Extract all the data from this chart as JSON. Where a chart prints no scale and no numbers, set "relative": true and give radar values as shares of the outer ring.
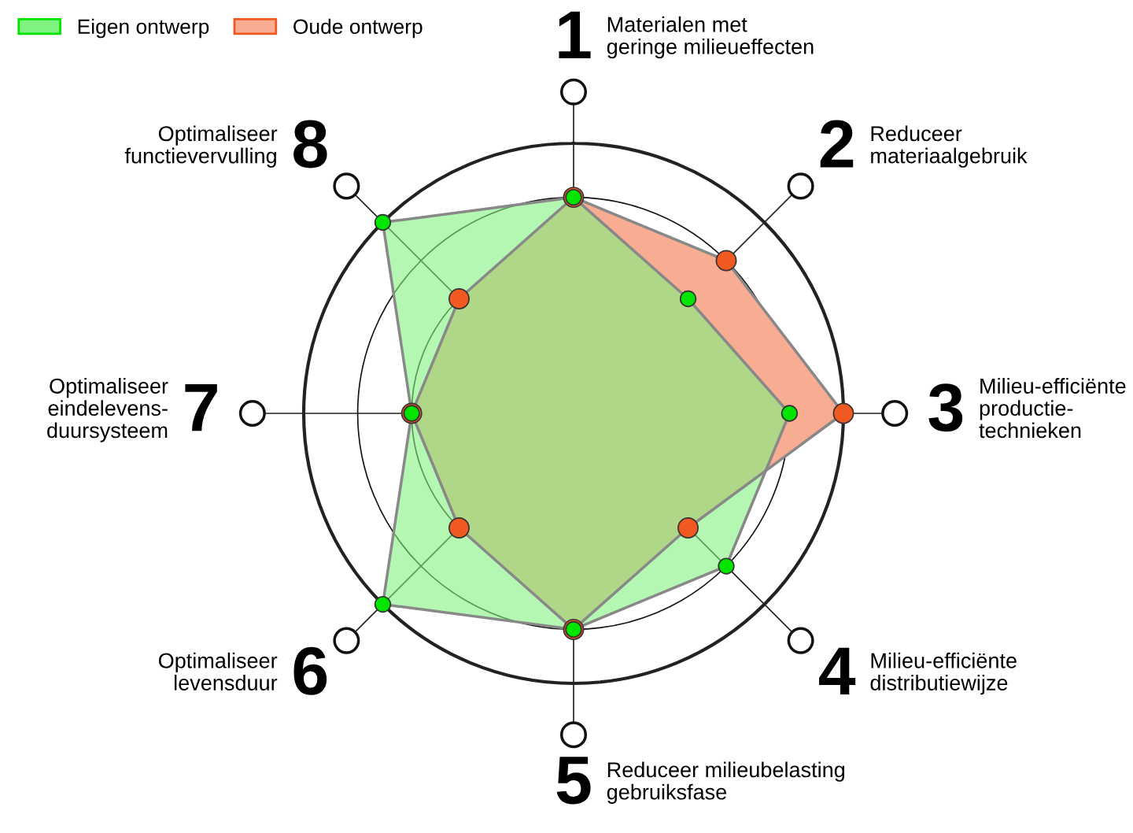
{
  "chart_data": {
    "type": "radar",
    "relative": true,
    "grid": true,
    "legend": "top left",
    "marker": "circle",
    "categories": [
      "Materialen met\ngeringe milieueffecten",
      "Reduceer\nmateriaalgebruik",
      "Milieu-efficiënte\nproductie-\ntechnieken",
      "Milieu-efficiënte\ndistributiewijze",
      "Reduceer milieubelasting\ngebruiksfase",
      "Optimaliseer\nlevensduur",
      "Optimaliseer\neindelevens-\nduursysteem",
      "Optimaliseer\nfunctievervulling"
    ],
    "annotations": [
      "1",
      "2",
      "3",
      "4",
      "5",
      "6",
      "7",
      "8"
    ],
    "series": [
      {
        "name": "Oude ontwerp",
        "color": "#f8ac91",
        "values": [
          0.8,
          0.8,
          1.0,
          0.6,
          0.8,
          0.6,
          0.6,
          0.6
        ]
      },
      {
        "name": "Eigen ontwerp",
        "color": "#80f280",
        "values": [
          0.8,
          0.6,
          0.8,
          0.8,
          0.8,
          1.0,
          0.6,
          1.0
        ]
      }
    ]
  }
}
